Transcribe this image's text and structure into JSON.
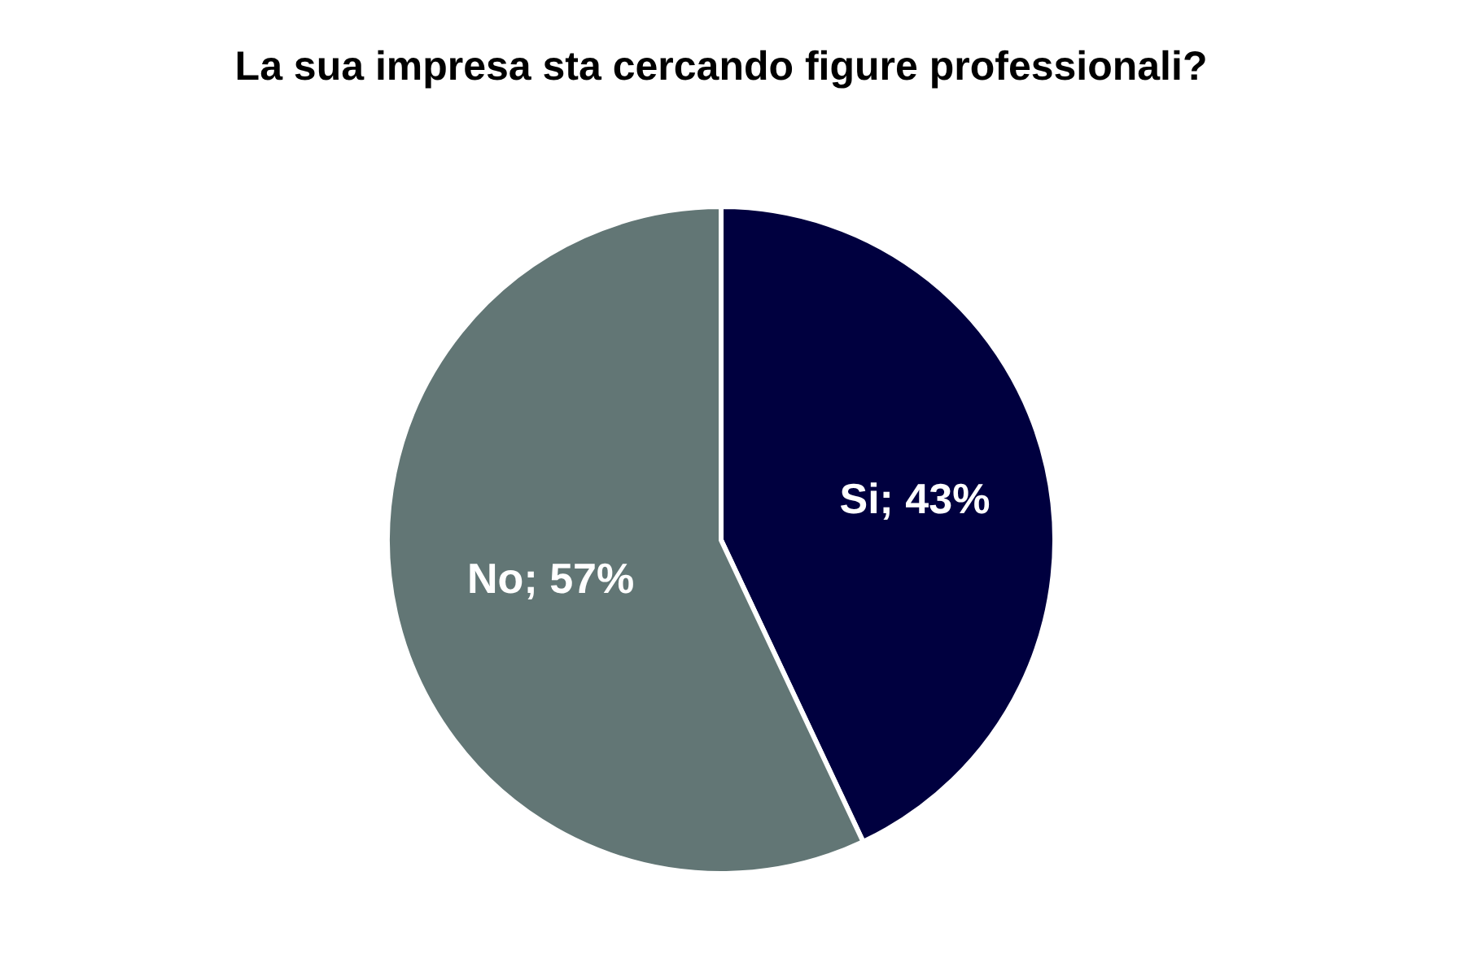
{
  "chart_data": {
    "type": "pie",
    "title": "La sua impresa sta cercando figure professionali?",
    "categories": [
      "Si",
      "No"
    ],
    "values": [
      43,
      57
    ],
    "colors": [
      "#00003f",
      "#627675"
    ],
    "value_labels": [
      "; 43%",
      "; 57%"
    ]
  }
}
